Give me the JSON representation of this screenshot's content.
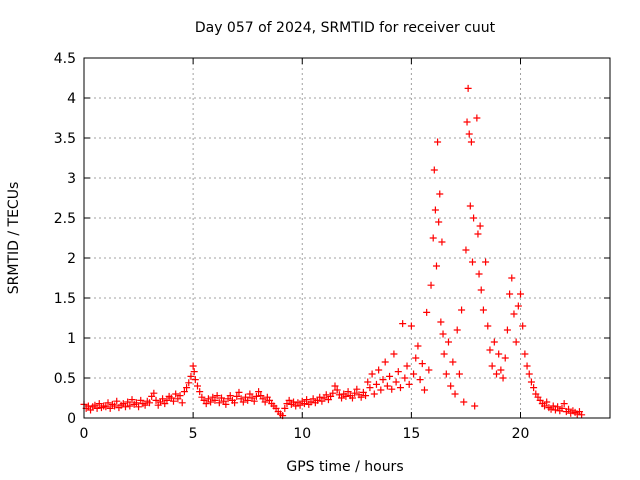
{
  "chart_data": {
    "type": "scatter",
    "title": "Day 057 of 2024, SRMTID for receiver cuut",
    "xlabel": "GPS time / hours",
    "ylabel": "SRMTID / TECUs",
    "xlim": [
      0,
      24.1
    ],
    "ylim": [
      0,
      4.5
    ],
    "xticks": [
      {
        "value": 0,
        "label": "0"
      },
      {
        "value": 5,
        "label": "5"
      },
      {
        "value": 10,
        "label": "10"
      },
      {
        "value": 15,
        "label": "15"
      },
      {
        "value": 20,
        "label": "20"
      }
    ],
    "yticks": [
      {
        "value": 0,
        "label": "0"
      },
      {
        "value": 0.5,
        "label": "0.5"
      },
      {
        "value": 1,
        "label": "1"
      },
      {
        "value": 1.5,
        "label": "1.5"
      },
      {
        "value": 2,
        "label": "2"
      },
      {
        "value": 2.5,
        "label": "2.5"
      },
      {
        "value": 3,
        "label": "3"
      },
      {
        "value": 3.5,
        "label": "3.5"
      },
      {
        "value": 4,
        "label": "4"
      },
      {
        "value": 4.5,
        "label": "4.5"
      }
    ],
    "grid": true,
    "marker": "plus",
    "series": [
      {
        "name": "SRMTID",
        "color": "#ff0000",
        "points": [
          [
            0.0,
            0.17
          ],
          [
            0.1,
            0.12
          ],
          [
            0.2,
            0.15
          ],
          [
            0.3,
            0.1
          ],
          [
            0.4,
            0.14
          ],
          [
            0.5,
            0.16
          ],
          [
            0.6,
            0.12
          ],
          [
            0.7,
            0.18
          ],
          [
            0.8,
            0.13
          ],
          [
            0.9,
            0.15
          ],
          [
            1.0,
            0.14
          ],
          [
            1.1,
            0.19
          ],
          [
            1.2,
            0.12
          ],
          [
            1.3,
            0.17
          ],
          [
            1.4,
            0.15
          ],
          [
            1.5,
            0.21
          ],
          [
            1.6,
            0.13
          ],
          [
            1.7,
            0.16
          ],
          [
            1.8,
            0.18
          ],
          [
            1.9,
            0.14
          ],
          [
            2.0,
            0.2
          ],
          [
            2.1,
            0.15
          ],
          [
            2.2,
            0.23
          ],
          [
            2.3,
            0.17
          ],
          [
            2.4,
            0.19
          ],
          [
            2.5,
            0.14
          ],
          [
            2.6,
            0.22
          ],
          [
            2.7,
            0.18
          ],
          [
            2.8,
            0.16
          ],
          [
            2.9,
            0.21
          ],
          [
            3.0,
            0.19
          ],
          [
            3.1,
            0.27
          ],
          [
            3.2,
            0.31
          ],
          [
            3.3,
            0.22
          ],
          [
            3.4,
            0.16
          ],
          [
            3.5,
            0.2
          ],
          [
            3.6,
            0.24
          ],
          [
            3.7,
            0.18
          ],
          [
            3.8,
            0.22
          ],
          [
            3.9,
            0.27
          ],
          [
            4.0,
            0.25
          ],
          [
            4.1,
            0.21
          ],
          [
            4.2,
            0.3
          ],
          [
            4.3,
            0.24
          ],
          [
            4.4,
            0.28
          ],
          [
            4.5,
            0.19
          ],
          [
            4.6,
            0.33
          ],
          [
            4.7,
            0.38
          ],
          [
            4.8,
            0.44
          ],
          [
            4.9,
            0.52
          ],
          [
            5.0,
            0.65
          ],
          [
            5.05,
            0.58
          ],
          [
            5.1,
            0.48
          ],
          [
            5.2,
            0.4
          ],
          [
            5.3,
            0.33
          ],
          [
            5.4,
            0.26
          ],
          [
            5.5,
            0.22
          ],
          [
            5.6,
            0.18
          ],
          [
            5.7,
            0.24
          ],
          [
            5.8,
            0.2
          ],
          [
            5.9,
            0.26
          ],
          [
            6.0,
            0.22
          ],
          [
            6.1,
            0.28
          ],
          [
            6.2,
            0.19
          ],
          [
            6.3,
            0.25
          ],
          [
            6.4,
            0.21
          ],
          [
            6.5,
            0.17
          ],
          [
            6.6,
            0.24
          ],
          [
            6.7,
            0.28
          ],
          [
            6.8,
            0.22
          ],
          [
            6.9,
            0.19
          ],
          [
            7.0,
            0.27
          ],
          [
            7.1,
            0.32
          ],
          [
            7.2,
            0.24
          ],
          [
            7.3,
            0.2
          ],
          [
            7.4,
            0.26
          ],
          [
            7.5,
            0.22
          ],
          [
            7.6,
            0.3
          ],
          [
            7.7,
            0.25
          ],
          [
            7.8,
            0.21
          ],
          [
            7.9,
            0.27
          ],
          [
            8.0,
            0.33
          ],
          [
            8.1,
            0.28
          ],
          [
            8.2,
            0.24
          ],
          [
            8.3,
            0.2
          ],
          [
            8.4,
            0.26
          ],
          [
            8.5,
            0.22
          ],
          [
            8.6,
            0.18
          ],
          [
            8.7,
            0.15
          ],
          [
            8.8,
            0.12
          ],
          [
            8.9,
            0.08
          ],
          [
            9.0,
            0.05
          ],
          [
            9.1,
            0.03
          ],
          [
            9.2,
            0.12
          ],
          [
            9.3,
            0.18
          ],
          [
            9.4,
            0.22
          ],
          [
            9.5,
            0.17
          ],
          [
            9.6,
            0.2
          ],
          [
            9.7,
            0.15
          ],
          [
            9.8,
            0.19
          ],
          [
            9.9,
            0.16
          ],
          [
            10.0,
            0.21
          ],
          [
            10.1,
            0.18
          ],
          [
            10.2,
            0.23
          ],
          [
            10.3,
            0.17
          ],
          [
            10.4,
            0.2
          ],
          [
            10.5,
            0.24
          ],
          [
            10.6,
            0.19
          ],
          [
            10.7,
            0.22
          ],
          [
            10.8,
            0.26
          ],
          [
            10.9,
            0.21
          ],
          [
            11.0,
            0.25
          ],
          [
            11.1,
            0.29
          ],
          [
            11.2,
            0.23
          ],
          [
            11.3,
            0.27
          ],
          [
            11.4,
            0.31
          ],
          [
            11.5,
            0.4
          ],
          [
            11.6,
            0.35
          ],
          [
            11.7,
            0.29
          ],
          [
            11.8,
            0.25
          ],
          [
            11.9,
            0.3
          ],
          [
            12.0,
            0.27
          ],
          [
            12.1,
            0.33
          ],
          [
            12.2,
            0.28
          ],
          [
            12.3,
            0.25
          ],
          [
            12.4,
            0.31
          ],
          [
            12.5,
            0.36
          ],
          [
            12.6,
            0.29
          ],
          [
            12.7,
            0.26
          ],
          [
            12.8,
            0.32
          ],
          [
            12.9,
            0.28
          ],
          [
            13.0,
            0.45
          ],
          [
            13.1,
            0.38
          ],
          [
            13.2,
            0.55
          ],
          [
            13.3,
            0.3
          ],
          [
            13.4,
            0.42
          ],
          [
            13.5,
            0.6
          ],
          [
            13.6,
            0.35
          ],
          [
            13.7,
            0.48
          ],
          [
            13.8,
            0.7
          ],
          [
            13.9,
            0.4
          ],
          [
            14.0,
            0.52
          ],
          [
            14.1,
            0.36
          ],
          [
            14.2,
            0.8
          ],
          [
            14.3,
            0.45
          ],
          [
            14.4,
            0.58
          ],
          [
            14.5,
            0.38
          ],
          [
            14.6,
            1.18
          ],
          [
            14.7,
            0.5
          ],
          [
            14.8,
            0.65
          ],
          [
            14.9,
            0.42
          ],
          [
            15.0,
            1.15
          ],
          [
            15.1,
            0.55
          ],
          [
            15.2,
            0.75
          ],
          [
            15.3,
            0.9
          ],
          [
            15.4,
            0.48
          ],
          [
            15.5,
            0.68
          ],
          [
            15.6,
            0.35
          ],
          [
            15.7,
            1.32
          ],
          [
            15.8,
            0.6
          ],
          [
            15.9,
            1.66
          ],
          [
            16.0,
            2.25
          ],
          [
            16.05,
            3.1
          ],
          [
            16.1,
            2.6
          ],
          [
            16.15,
            1.9
          ],
          [
            16.2,
            3.45
          ],
          [
            16.25,
            2.45
          ],
          [
            16.3,
            2.8
          ],
          [
            16.35,
            1.2
          ],
          [
            16.4,
            2.2
          ],
          [
            16.45,
            1.05
          ],
          [
            16.5,
            0.8
          ],
          [
            16.6,
            0.55
          ],
          [
            16.7,
            0.95
          ],
          [
            16.8,
            0.4
          ],
          [
            16.9,
            0.7
          ],
          [
            17.0,
            0.3
          ],
          [
            17.1,
            1.1
          ],
          [
            17.2,
            0.55
          ],
          [
            17.3,
            1.35
          ],
          [
            17.4,
            0.2
          ],
          [
            17.5,
            2.1
          ],
          [
            17.55,
            3.7
          ],
          [
            17.6,
            4.12
          ],
          [
            17.65,
            3.55
          ],
          [
            17.7,
            2.65
          ],
          [
            17.75,
            3.45
          ],
          [
            17.8,
            1.95
          ],
          [
            17.85,
            2.5
          ],
          [
            17.9,
            0.15
          ],
          [
            18.0,
            3.75
          ],
          [
            18.05,
            2.3
          ],
          [
            18.1,
            1.8
          ],
          [
            18.15,
            2.4
          ],
          [
            18.2,
            1.6
          ],
          [
            18.3,
            1.35
          ],
          [
            18.4,
            1.95
          ],
          [
            18.5,
            1.15
          ],
          [
            18.6,
            0.85
          ],
          [
            18.7,
            0.65
          ],
          [
            18.8,
            0.95
          ],
          [
            18.9,
            0.55
          ],
          [
            19.0,
            0.8
          ],
          [
            19.1,
            0.6
          ],
          [
            19.2,
            0.5
          ],
          [
            19.3,
            0.75
          ],
          [
            19.4,
            1.1
          ],
          [
            19.5,
            1.55
          ],
          [
            19.6,
            1.75
          ],
          [
            19.7,
            1.3
          ],
          [
            19.8,
            0.95
          ],
          [
            19.9,
            1.4
          ],
          [
            20.0,
            1.55
          ],
          [
            20.1,
            1.15
          ],
          [
            20.2,
            0.8
          ],
          [
            20.3,
            0.65
          ],
          [
            20.4,
            0.55
          ],
          [
            20.5,
            0.45
          ],
          [
            20.6,
            0.38
          ],
          [
            20.7,
            0.3
          ],
          [
            20.8,
            0.26
          ],
          [
            20.9,
            0.22
          ],
          [
            21.0,
            0.18
          ],
          [
            21.1,
            0.15
          ],
          [
            21.2,
            0.2
          ],
          [
            21.3,
            0.13
          ],
          [
            21.4,
            0.11
          ],
          [
            21.5,
            0.15
          ],
          [
            21.6,
            0.1
          ],
          [
            21.7,
            0.14
          ],
          [
            21.8,
            0.09
          ],
          [
            21.9,
            0.12
          ],
          [
            22.0,
            0.18
          ],
          [
            22.1,
            0.08
          ],
          [
            22.2,
            0.11
          ],
          [
            22.3,
            0.06
          ],
          [
            22.4,
            0.09
          ],
          [
            22.5,
            0.07
          ],
          [
            22.6,
            0.05
          ],
          [
            22.7,
            0.08
          ],
          [
            22.8,
            0.04
          ]
        ]
      }
    ]
  }
}
